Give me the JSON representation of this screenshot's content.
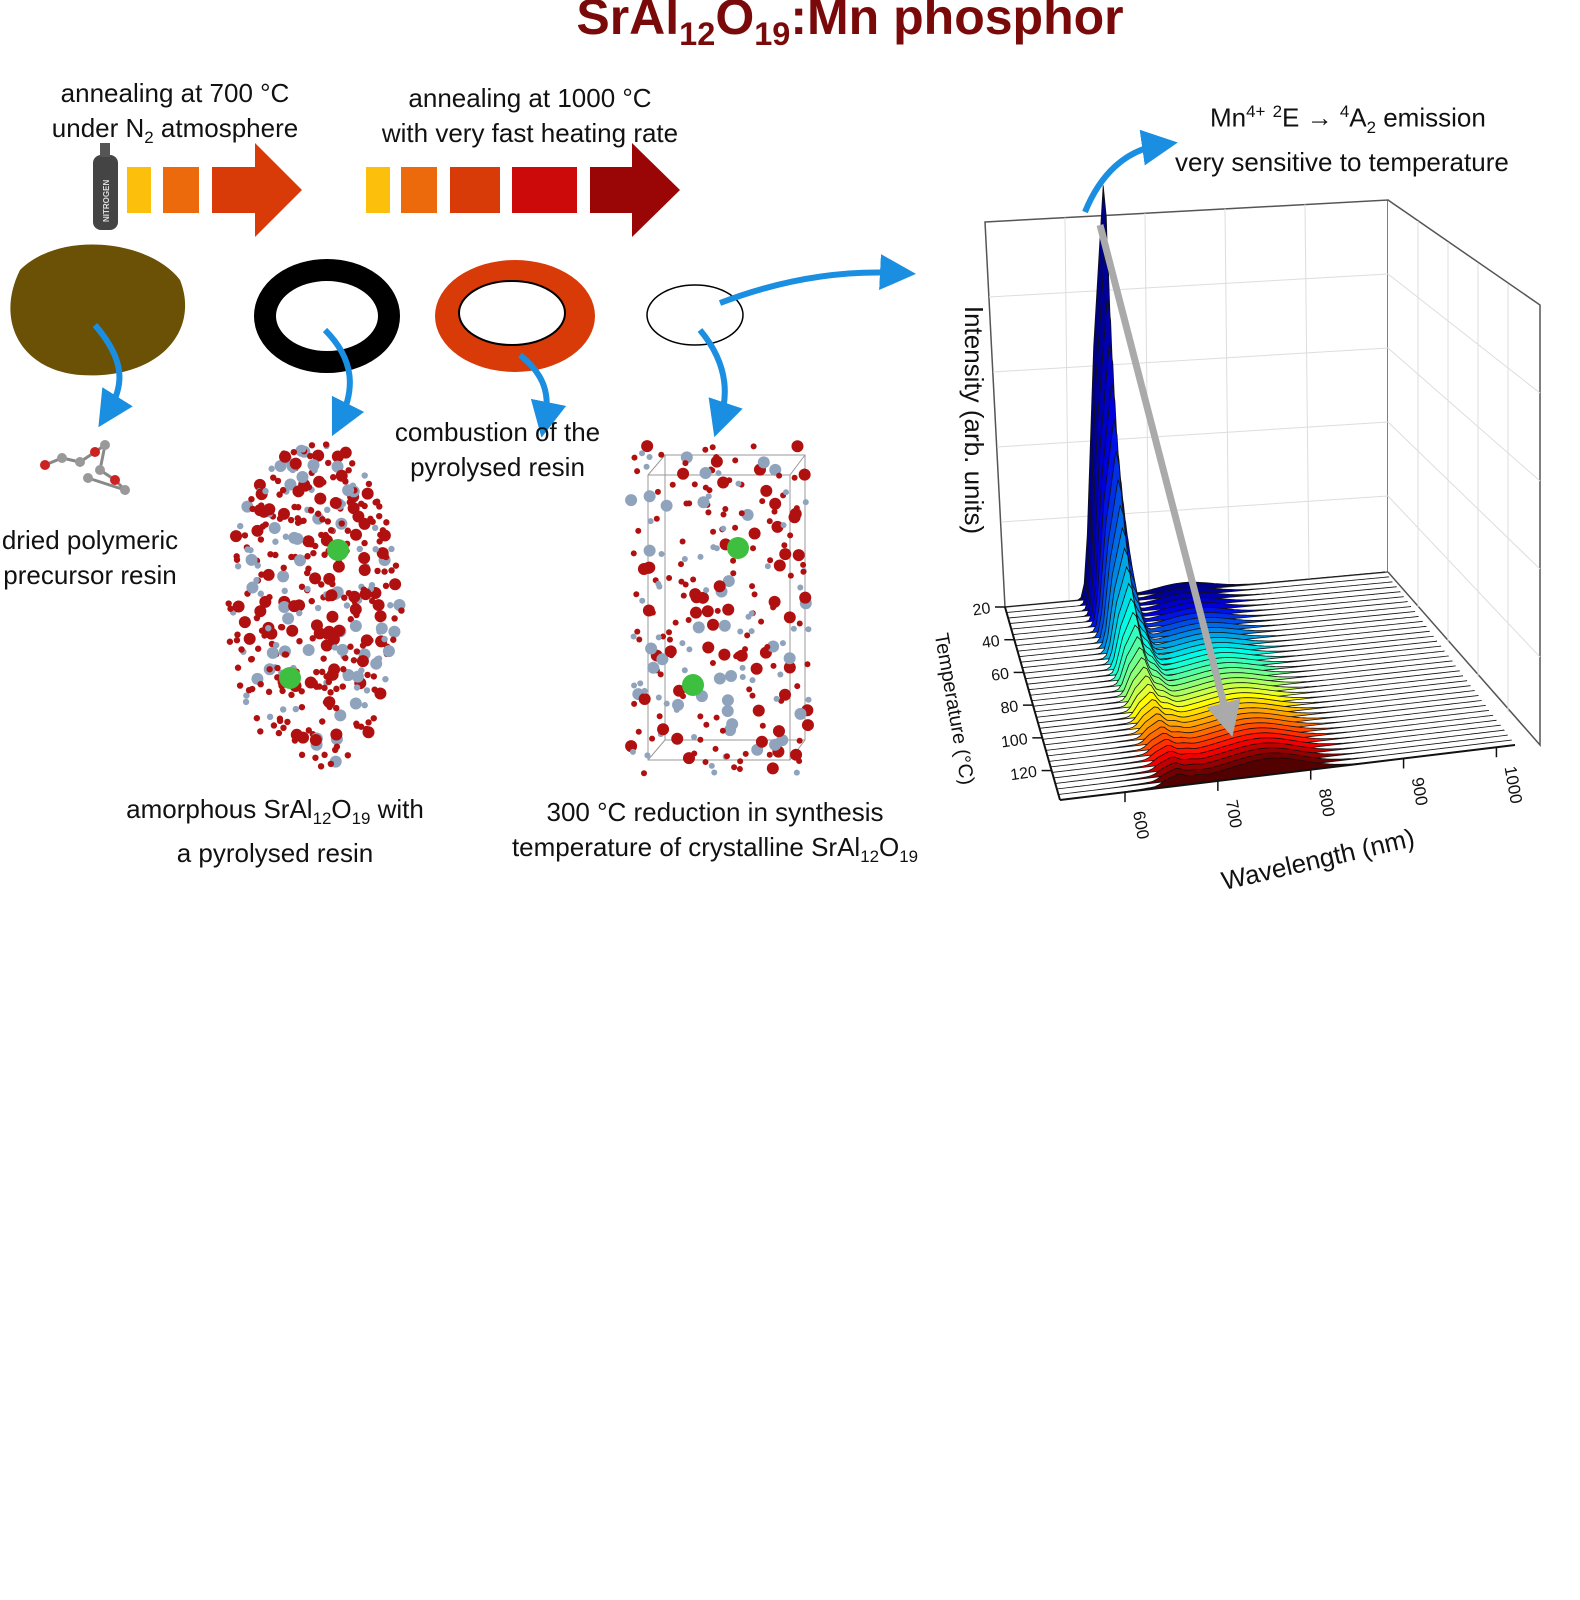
{
  "title": {
    "pre": "SrAl",
    "sub1": "12",
    "mid": "O",
    "sub2": "19",
    "post": ":Mn phosphor"
  },
  "step1": {
    "line1": "annealing at 700 °C",
    "line2_pre": "under N",
    "line2_sub": "2",
    "line2_post": " atmosphere",
    "cylinder_label": "NITROGEN"
  },
  "step2": {
    "line1": "annealing at 1000 °C",
    "line2": "with very fast heating rate"
  },
  "emission": {
    "mn": "Mn",
    "mn_sup": "4+",
    "e_sup": "2",
    "e": "E → ",
    "a_sup": "4",
    "a": "A",
    "a_sub": "2",
    "tail": " emission",
    "line2": "very sensitive to temperature"
  },
  "labels": {
    "precursor": {
      "line1": "dried polymeric",
      "line2": "precursor resin"
    },
    "amorphous": {
      "pre": "amorphous SrAl",
      "sub1": "12",
      "mid": "O",
      "sub2": "19",
      "post": " with",
      "line2": "a pyrolysed resin"
    },
    "combustion": {
      "line1": "combustion of the",
      "line2": "pyrolysed resin"
    },
    "reduction": {
      "line1": "300 °C reduction in synthesis",
      "line2_pre": "temperature of crystalline SrAl",
      "sub1": "12",
      "mid": "O",
      "sub2": "19"
    }
  },
  "colors": {
    "title": "#7a0a0a",
    "arrow_blue": "#1a8ee0",
    "resin": "#6b5106",
    "pyrolysed": "#000000",
    "combustion": "#d83a08",
    "oxygen": "#b01010",
    "aluminium": "#8fa3bd",
    "manganese": "#3fbf3f"
  },
  "heating_steps_700": [
    "#fbbf0c",
    "#ec6a0c",
    "#d83a08"
  ],
  "heating_steps_1000": [
    "#fbbf0c",
    "#ec6a0c",
    "#d83a08",
    "#cc0a0a",
    "#9a0606"
  ],
  "chart_data": {
    "type": "waterfall",
    "zlabel": "Intensity (arb. units)",
    "xlabel": "Wavelength (nm)",
    "ylabel": "Temperature (°C)",
    "x_ticks": [
      "600",
      "700",
      "800",
      "900",
      "1000"
    ],
    "y_ticks": [
      "20",
      "40",
      "60",
      "80",
      "100",
      "120"
    ],
    "colormap": "jet (blue at 20 °C to dark red at high temperature)",
    "trend": "Mn4+ emission peak near 660 nm decreases strongly with increasing temperature"
  }
}
